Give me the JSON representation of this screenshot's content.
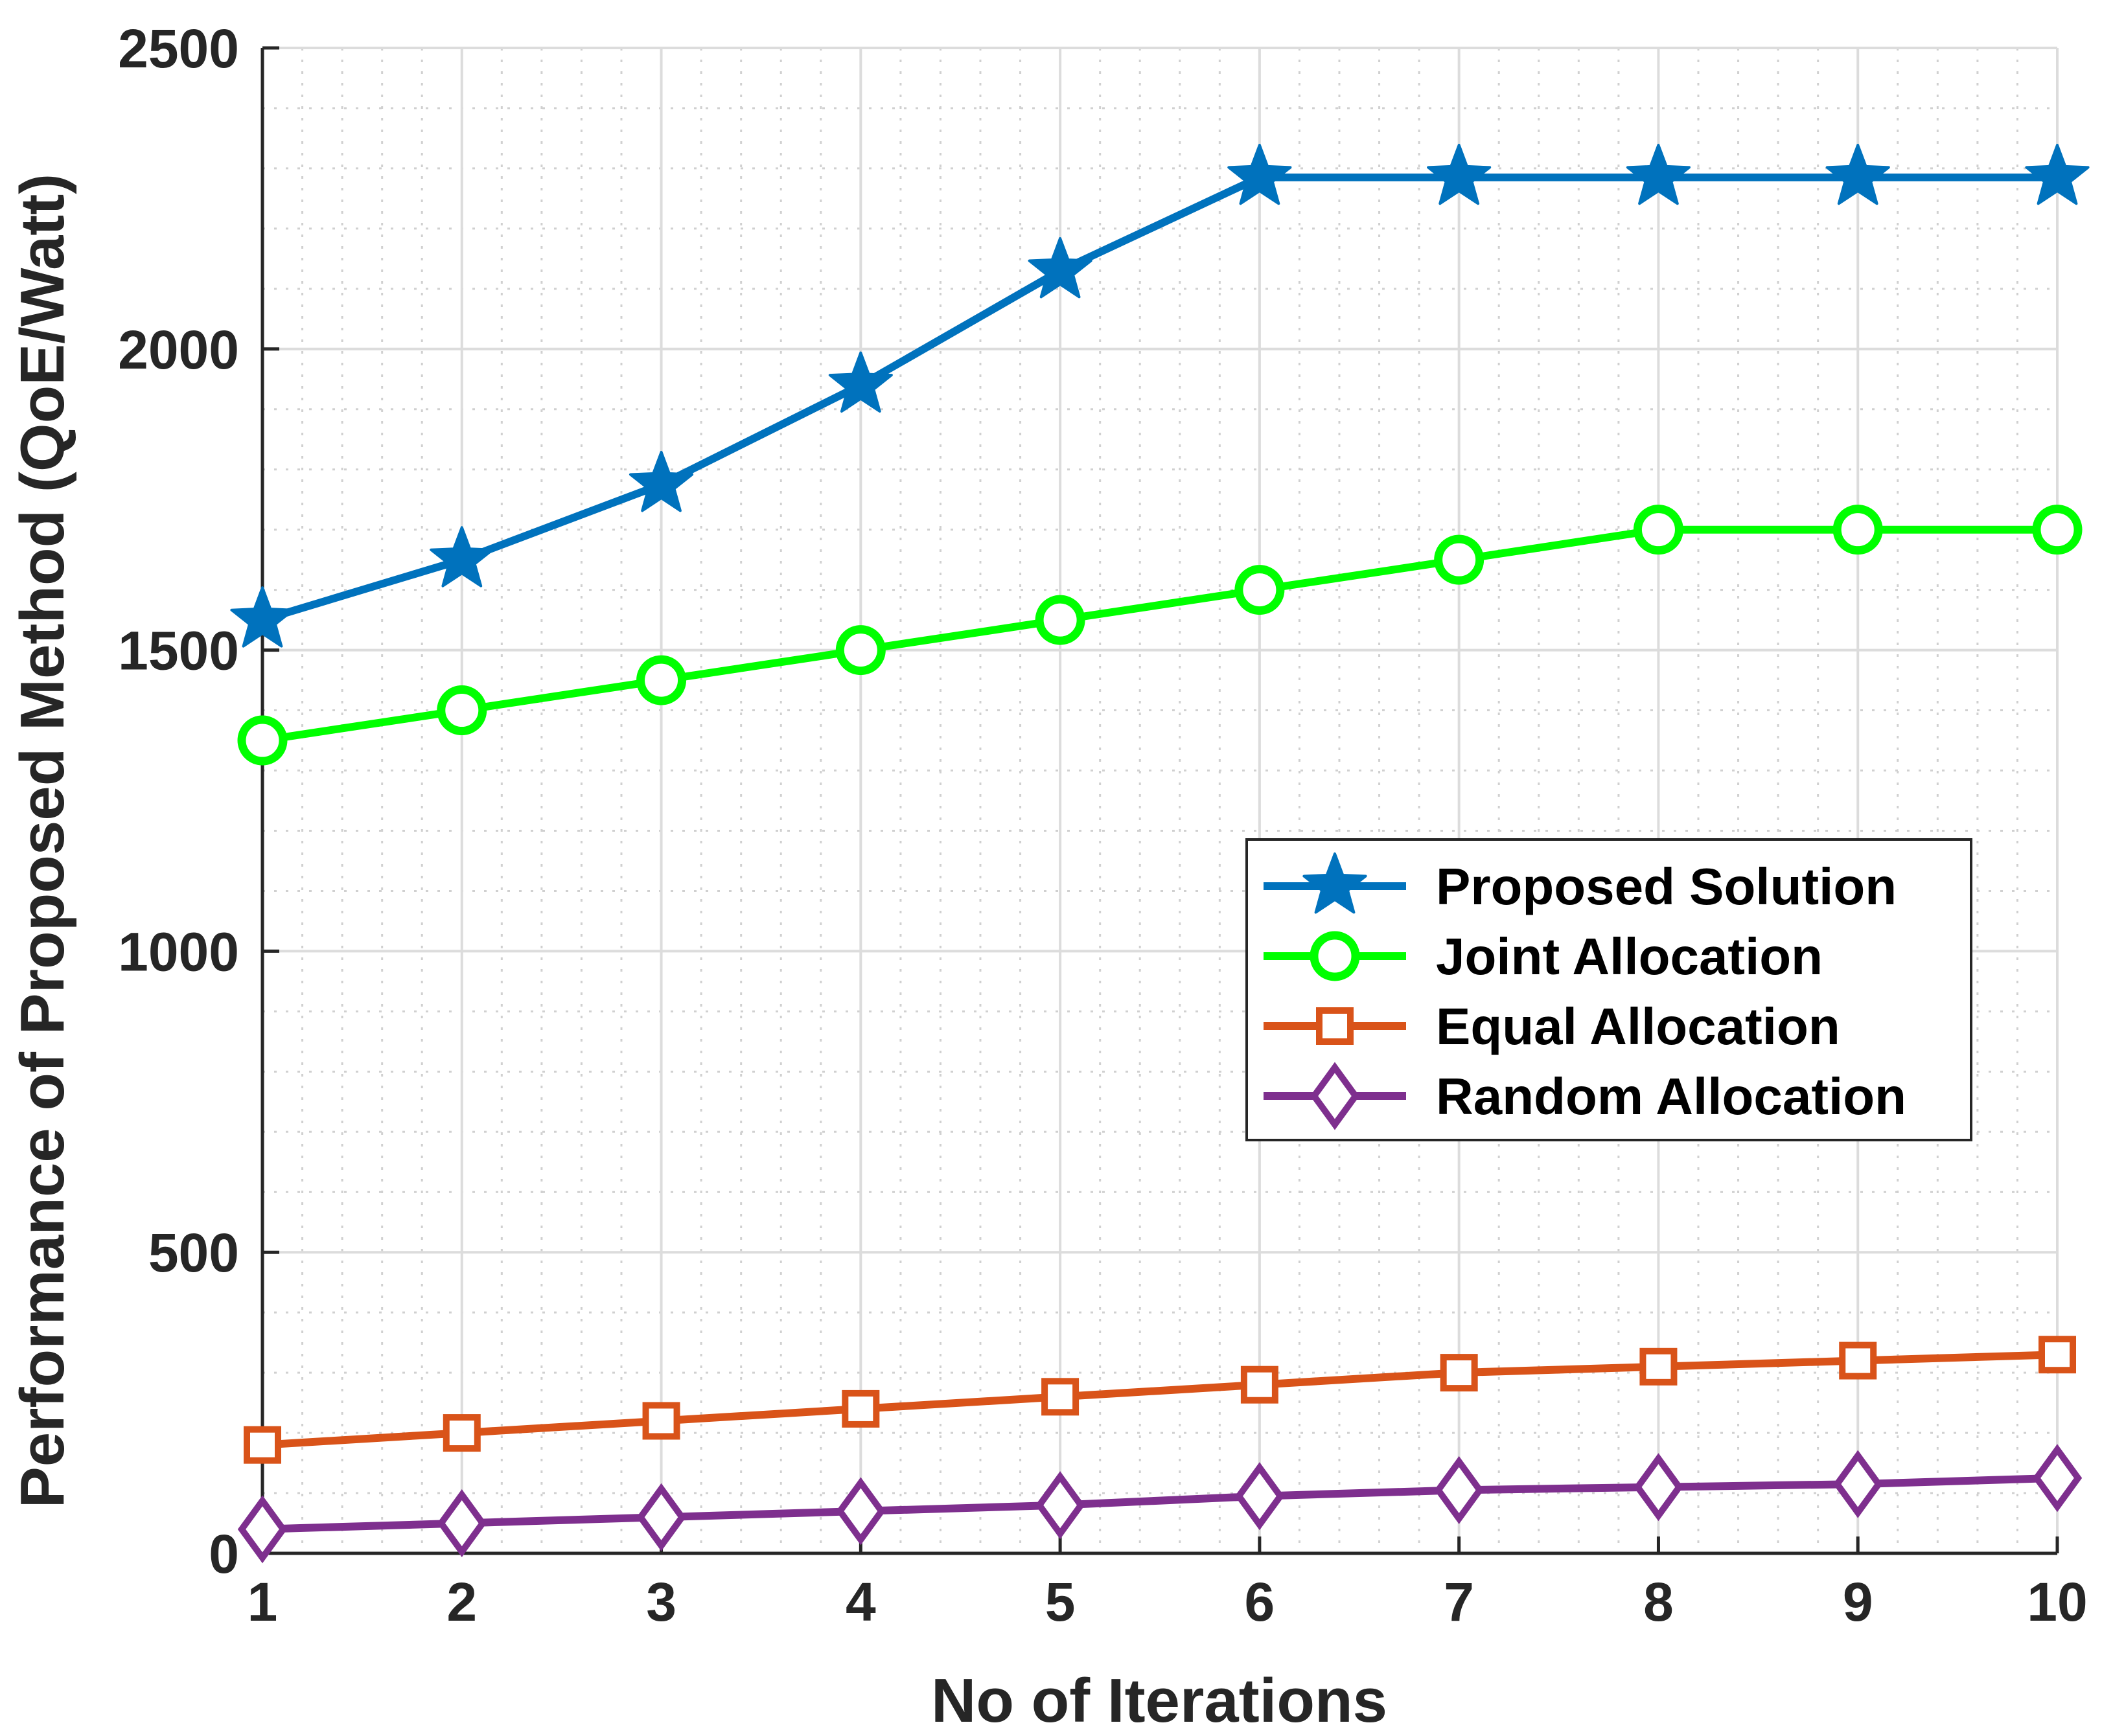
{
  "chart_data": {
    "type": "line",
    "title": "",
    "xlabel": "No of Iterations",
    "ylabel": "Performance of Proposed Method (QoE/Watt)",
    "x": [
      1,
      2,
      3,
      4,
      5,
      6,
      7,
      8,
      9,
      10
    ],
    "xlim": [
      1,
      10
    ],
    "ylim": [
      0,
      2500
    ],
    "xticks": [
      "1",
      "2",
      "3",
      "4",
      "5",
      "6",
      "7",
      "8",
      "9",
      "10"
    ],
    "yticks": [
      "0",
      "500",
      "1000",
      "1500",
      "2000",
      "2500"
    ],
    "grid": true,
    "minor_grid": true,
    "legend_position": "center-right",
    "series": [
      {
        "name": "Proposed Solution",
        "color": "#0072BD",
        "marker": "star",
        "values": [
          1550,
          1650,
          1775,
          1940,
          2130,
          2285,
          2285,
          2285,
          2285,
          2285
        ]
      },
      {
        "name": "Joint Allocation",
        "color": "#00FF00",
        "marker": "circle",
        "values": [
          1350,
          1400,
          1450,
          1500,
          1550,
          1600,
          1650,
          1700,
          1700,
          1700
        ]
      },
      {
        "name": "Equal Allocation",
        "color": "#D95319",
        "marker": "square",
        "values": [
          180,
          200,
          220,
          240,
          260,
          280,
          300,
          310,
          320,
          330
        ]
      },
      {
        "name": "Random Allocation",
        "color": "#7E2F8E",
        "marker": "diamond",
        "values": [
          40,
          50,
          60,
          70,
          80,
          95,
          105,
          110,
          115,
          125
        ]
      }
    ]
  }
}
